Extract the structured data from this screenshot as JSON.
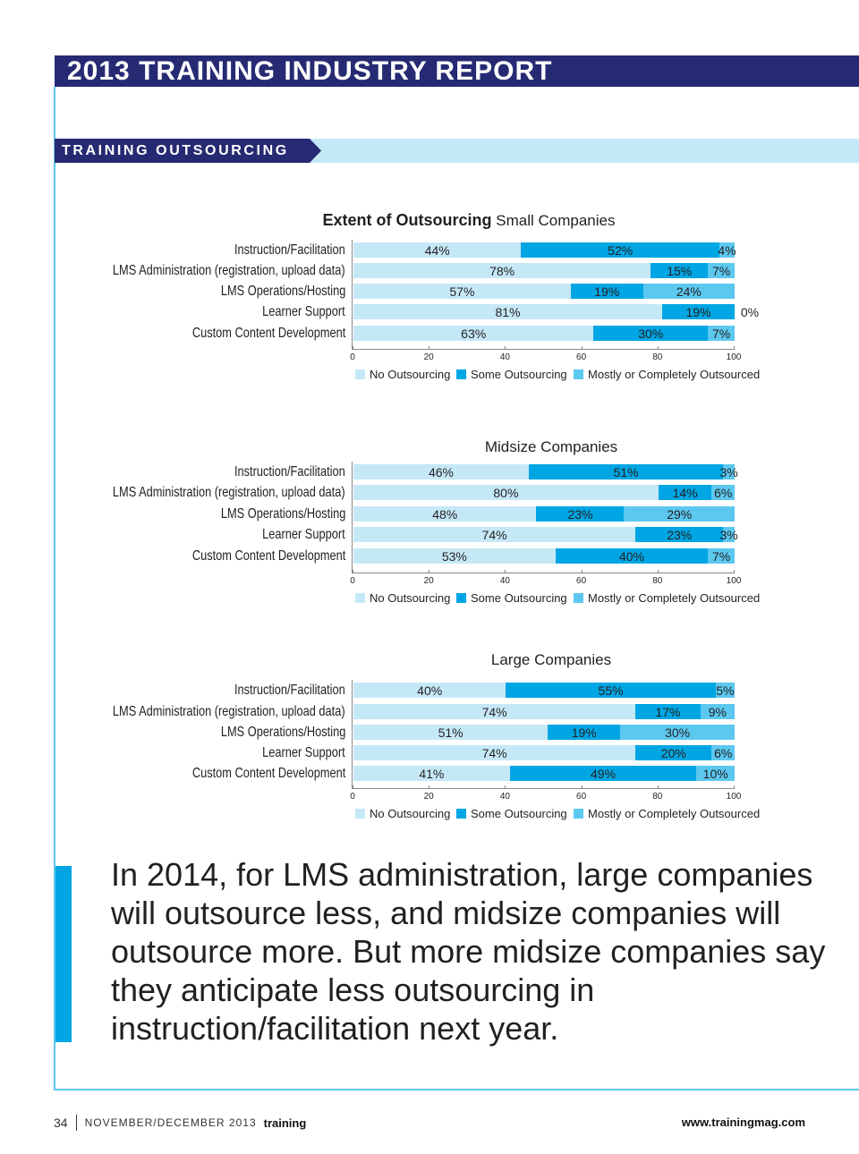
{
  "header": {
    "title": "2013 TRAINING INDUSTRY REPORT",
    "section": "TRAINING OUTSOURCING"
  },
  "colors": {
    "navy": "#262a72",
    "no": "#c5e8f7",
    "some": "#00a6e3",
    "mostly": "#5cc8f0"
  },
  "chart_data": [
    {
      "type": "bar",
      "orientation": "horizontal",
      "stacked": true,
      "title": "Extent of Outsourcing",
      "subtitle": "Small Companies",
      "categories": [
        "Instruction/Facilitation",
        "LMS Administration (registration, upload data)",
        "LMS Operations/Hosting",
        "Learner Support",
        "Custom Content Development"
      ],
      "series": [
        {
          "name": "No Outsourcing",
          "values": [
            44,
            78,
            57,
            81,
            63
          ]
        },
        {
          "name": "Some Outsourcing",
          "values": [
            52,
            15,
            19,
            19,
            30
          ]
        },
        {
          "name": "Mostly or Completely Outsourced",
          "values": [
            4,
            7,
            24,
            0,
            7
          ]
        }
      ],
      "xlim": [
        0,
        100
      ],
      "xticks": [
        "0",
        "20",
        "40",
        "60",
        "80",
        "100"
      ],
      "legend": "bottom"
    },
    {
      "type": "bar",
      "orientation": "horizontal",
      "stacked": true,
      "title": "",
      "subtitle": "Midsize Companies",
      "categories": [
        "Instruction/Facilitation",
        "LMS Administration (registration, upload data)",
        "LMS Operations/Hosting",
        "Learner Support",
        "Custom Content Development"
      ],
      "series": [
        {
          "name": "No Outsourcing",
          "values": [
            46,
            80,
            48,
            74,
            53
          ]
        },
        {
          "name": "Some Outsourcing",
          "values": [
            51,
            14,
            23,
            23,
            40
          ]
        },
        {
          "name": "Mostly or Completely Outsourced",
          "values": [
            3,
            6,
            29,
            3,
            7
          ]
        }
      ],
      "xlim": [
        0,
        100
      ],
      "xticks": [
        "0",
        "20",
        "40",
        "60",
        "80",
        "100"
      ],
      "legend": "bottom"
    },
    {
      "type": "bar",
      "orientation": "horizontal",
      "stacked": true,
      "title": "",
      "subtitle": "Large Companies",
      "categories": [
        "Instruction/Facilitation",
        "LMS Administration (registration, upload data)",
        "LMS Operations/Hosting",
        "Learner Support",
        "Custom Content Development"
      ],
      "series": [
        {
          "name": "No Outsourcing",
          "values": [
            40,
            74,
            51,
            74,
            41
          ]
        },
        {
          "name": "Some Outsourcing",
          "values": [
            55,
            17,
            19,
            20,
            49
          ]
        },
        {
          "name": "Mostly or Completely Outsourced",
          "values": [
            5,
            9,
            30,
            6,
            10
          ]
        }
      ],
      "xlim": [
        0,
        100
      ],
      "xticks": [
        "0",
        "20",
        "40",
        "60",
        "80",
        "100"
      ],
      "legend": "bottom"
    }
  ],
  "quote": "In 2014, for LMS administration, large companies will outsource less, and midsize companies will outsource more. But more midsize companies say they anticipate less outsourcing in instruction/facilitation next year.",
  "footer": {
    "page": "34",
    "issue": "NOVEMBER/DECEMBER 2013",
    "brand": "training",
    "url": "www.trainingmag.com"
  }
}
